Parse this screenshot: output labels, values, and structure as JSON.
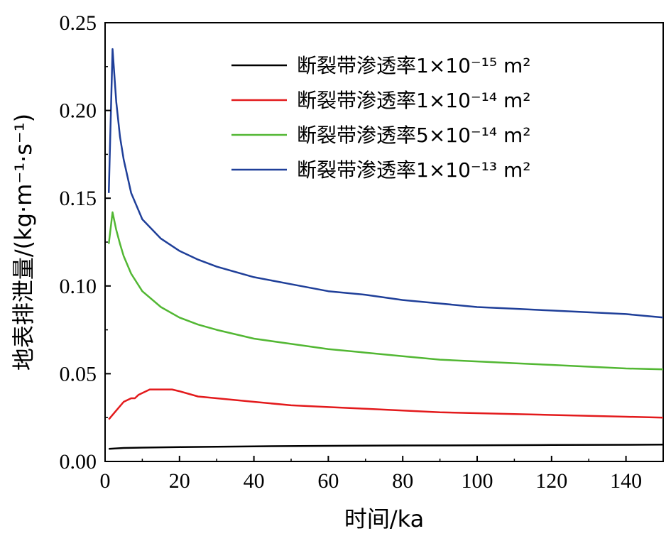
{
  "chart_data": {
    "type": "line",
    "xlabel": "时间/ka",
    "ylabel": "地表排泄量/(kg·m⁻¹·s⁻¹)",
    "xlim": [
      0,
      150
    ],
    "ylim": [
      0,
      0.25
    ],
    "xticks": [
      "0",
      "20",
      "40",
      "60",
      "80",
      "100",
      "120",
      "140"
    ],
    "yticks": [
      "0.00",
      "0.05",
      "0.10",
      "0.15",
      "0.20",
      "0.25"
    ],
    "grid": false,
    "legend_position": "top-right",
    "series": [
      {
        "name": "断裂带渗透率1×10⁻¹⁵ m²",
        "color": "#000000",
        "x": [
          1,
          5,
          10,
          20,
          40,
          60,
          80,
          100,
          120,
          150
        ],
        "y": [
          0.0072,
          0.0077,
          0.0079,
          0.0082,
          0.0086,
          0.0089,
          0.0091,
          0.0092,
          0.0094,
          0.0096
        ]
      },
      {
        "name": "断裂带渗透率1×10⁻¹⁴ m²",
        "color": "#e31a1c",
        "x": [
          1,
          3,
          5,
          7,
          8,
          9,
          10,
          12,
          14,
          16,
          18,
          20,
          25,
          30,
          40,
          50,
          60,
          70,
          80,
          90,
          100,
          110,
          120,
          130,
          140,
          150
        ],
        "y": [
          0.024,
          0.029,
          0.034,
          0.036,
          0.036,
          0.038,
          0.039,
          0.041,
          0.041,
          0.041,
          0.041,
          0.04,
          0.037,
          0.036,
          0.034,
          0.032,
          0.031,
          0.03,
          0.029,
          0.028,
          0.0275,
          0.027,
          0.0265,
          0.026,
          0.0255,
          0.025
        ]
      },
      {
        "name": "断裂带渗透率5×10⁻¹⁴ m²",
        "color": "#52b733",
        "x": [
          1,
          2,
          3,
          4,
          5,
          7,
          10,
          15,
          20,
          25,
          30,
          40,
          50,
          60,
          70,
          80,
          90,
          100,
          110,
          120,
          130,
          140,
          150
        ],
        "y": [
          0.124,
          0.142,
          0.132,
          0.124,
          0.117,
          0.107,
          0.097,
          0.088,
          0.082,
          0.078,
          0.075,
          0.07,
          0.067,
          0.064,
          0.062,
          0.06,
          0.058,
          0.057,
          0.056,
          0.055,
          0.054,
          0.053,
          0.0525
        ]
      },
      {
        "name": "断裂带渗透率1×10⁻¹³ m²",
        "color": "#1f3f99",
        "x": [
          1,
          2,
          3,
          4,
          5,
          7,
          10,
          15,
          20,
          25,
          30,
          40,
          50,
          60,
          70,
          80,
          90,
          100,
          110,
          120,
          130,
          140,
          150
        ],
        "y": [
          0.153,
          0.235,
          0.205,
          0.185,
          0.172,
          0.153,
          0.138,
          0.127,
          0.12,
          0.115,
          0.111,
          0.105,
          0.101,
          0.097,
          0.095,
          0.092,
          0.09,
          0.088,
          0.087,
          0.086,
          0.085,
          0.084,
          0.082
        ]
      }
    ]
  }
}
